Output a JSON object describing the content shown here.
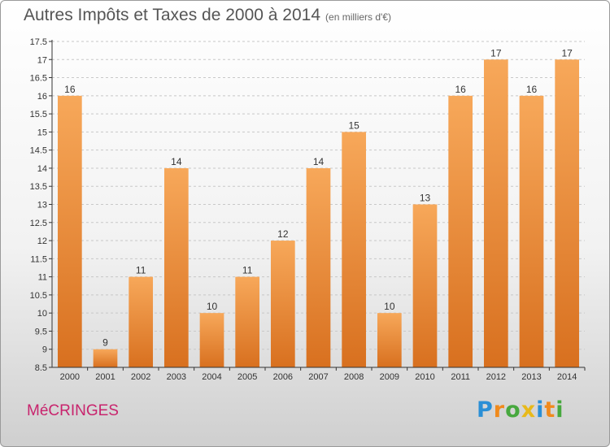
{
  "title": "Autres Impôts et Taxes de 2000 à 2014",
  "unit": "(en milliers d'€)",
  "commune": "MéCRINGES",
  "logo": {
    "text": "Proxiti",
    "letters": [
      {
        "ch": "P",
        "color": "#2a8fd6"
      },
      {
        "ch": "r",
        "color": "#f08a1c"
      },
      {
        "ch": "o",
        "color": "#47a83e"
      },
      {
        "ch": "x",
        "color": "#e8b91a"
      },
      {
        "ch": "i",
        "color": "#2a8fd6"
      },
      {
        "ch": "t",
        "color": "#f08a1c"
      },
      {
        "ch": "i",
        "color": "#47a83e"
      }
    ]
  },
  "colors": {
    "bar_top": "#f7a85a",
    "bar_bottom": "#d8701f",
    "axis": "#333333",
    "grid": "#c8c8c8"
  },
  "chart_data": {
    "type": "bar",
    "categories": [
      "2000",
      "2001",
      "2002",
      "2003",
      "2004",
      "2005",
      "2006",
      "2007",
      "2008",
      "2009",
      "2010",
      "2011",
      "2012",
      "2013",
      "2014"
    ],
    "values": [
      16,
      9,
      11,
      14,
      10,
      11,
      12,
      14,
      15,
      10,
      13,
      16,
      17,
      16,
      17
    ],
    "ylim": [
      8.5,
      17.5
    ],
    "yticks": [
      8.5,
      9,
      9.5,
      10,
      10.5,
      11,
      11.5,
      12,
      12.5,
      13,
      13.5,
      14,
      14.5,
      15,
      15.5,
      16,
      16.5,
      17,
      17.5
    ],
    "grid": "horizontal dashed",
    "legend": "none"
  }
}
